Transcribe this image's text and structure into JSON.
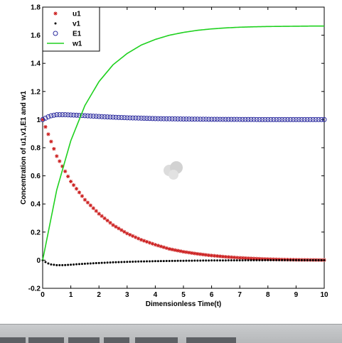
{
  "chart_data": {
    "type": "line",
    "title": "",
    "xlabel": "Dimensionless Time(t)",
    "ylabel": "Concentration of u1,v1,E1 and w1",
    "xlim": [
      0,
      10
    ],
    "ylim": [
      -0.2,
      1.8
    ],
    "xticks": [
      0,
      1,
      2,
      3,
      4,
      5,
      6,
      7,
      8,
      9,
      10
    ],
    "yticks": [
      -0.2,
      0,
      0.2,
      0.4,
      0.6,
      0.8,
      1,
      1.2,
      1.4,
      1.6,
      1.8
    ],
    "grid": false,
    "legend_position": "top-left",
    "series": [
      {
        "name": "u1",
        "marker": "star",
        "color": "#cc1f1f",
        "x": [
          0,
          0.5,
          1,
          1.5,
          2,
          2.5,
          3,
          3.5,
          4,
          4.5,
          5,
          5.5,
          6,
          6.5,
          7,
          7.5,
          8,
          8.5,
          9,
          9.5,
          10
        ],
        "y": [
          1.0,
          0.74,
          0.56,
          0.43,
          0.33,
          0.25,
          0.19,
          0.145,
          0.11,
          0.08,
          0.06,
          0.045,
          0.033,
          0.024,
          0.017,
          0.012,
          0.008,
          0.005,
          0.003,
          0.002,
          0.001
        ]
      },
      {
        "name": "v1",
        "marker": "dot",
        "color": "#000000",
        "x": [
          0,
          0.15,
          0.3,
          0.5,
          0.75,
          1,
          1.5,
          2,
          2.5,
          3,
          3.5,
          4,
          5,
          6,
          7,
          8,
          9,
          10
        ],
        "y": [
          0,
          -0.02,
          -0.03,
          -0.035,
          -0.035,
          -0.032,
          -0.025,
          -0.02,
          -0.015,
          -0.012,
          -0.009,
          -0.007,
          -0.004,
          -0.002,
          -0.001,
          0,
          0,
          0
        ]
      },
      {
        "name": "E1",
        "marker": "circle",
        "color": "#2a2a9e",
        "x": [
          0,
          0.25,
          0.5,
          0.75,
          1,
          1.5,
          2,
          2.5,
          3,
          3.5,
          4,
          5,
          6,
          7,
          8,
          9,
          10
        ],
        "y": [
          1.0,
          1.025,
          1.035,
          1.035,
          1.033,
          1.028,
          1.022,
          1.017,
          1.013,
          1.01,
          1.007,
          1.004,
          1.002,
          1.001,
          1.0,
          1.0,
          1.0
        ]
      },
      {
        "name": "w1",
        "marker": "line",
        "color": "#1fd11f",
        "x": [
          0,
          0.5,
          1,
          1.5,
          2,
          2.5,
          3,
          3.5,
          4,
          4.5,
          5,
          5.5,
          6,
          6.5,
          7,
          7.5,
          8,
          8.5,
          9,
          9.5,
          10
        ],
        "y": [
          0,
          0.5,
          0.85,
          1.1,
          1.27,
          1.39,
          1.47,
          1.53,
          1.57,
          1.6,
          1.62,
          1.635,
          1.645,
          1.652,
          1.657,
          1.66,
          1.662,
          1.663,
          1.664,
          1.665,
          1.665
        ]
      }
    ]
  }
}
